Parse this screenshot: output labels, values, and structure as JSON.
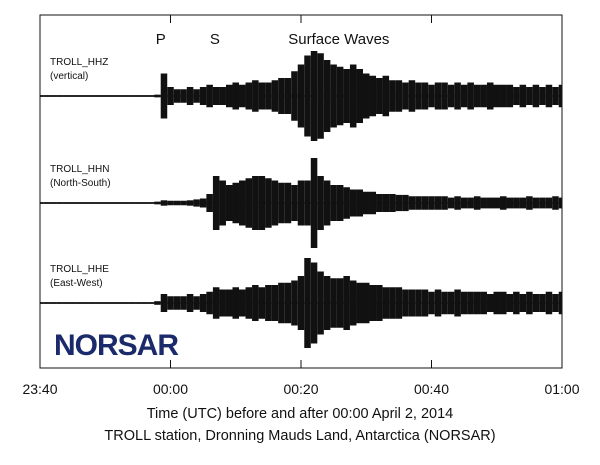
{
  "chart_data": {
    "type": "seismogram",
    "xlim": [
      -20,
      60
    ],
    "xticks": [
      {
        "value": -20,
        "label": "23:40"
      },
      {
        "value": 0,
        "label": "00:00"
      },
      {
        "value": 20,
        "label": "00:20"
      },
      {
        "value": 40,
        "label": "00:40"
      },
      {
        "value": 60,
        "label": "01:00"
      }
    ],
    "x": [
      -20,
      -19,
      -18,
      -17,
      -16,
      -15,
      -14,
      -13,
      -12,
      -11,
      -10,
      -9,
      -8,
      -7,
      -6,
      -5,
      -4,
      -3,
      -2,
      -1,
      0,
      1,
      2,
      3,
      4,
      5,
      6,
      7,
      8,
      9,
      10,
      11,
      12,
      13,
      14,
      15,
      16,
      17,
      18,
      19,
      20,
      21,
      22,
      23,
      24,
      25,
      26,
      27,
      28,
      29,
      30,
      31,
      32,
      33,
      34,
      35,
      36,
      37,
      38,
      39,
      40,
      41,
      42,
      43,
      44,
      45,
      46,
      47,
      48,
      49,
      50,
      51,
      52,
      53,
      54,
      55,
      56,
      57,
      58,
      59,
      60
    ],
    "series": [
      {
        "name": "TROLL_HHZ",
        "component": "(vertical)",
        "color": "#111111",
        "values": [
          0.02,
          0.02,
          0.02,
          0.02,
          0.02,
          0.02,
          0.02,
          0.02,
          0.02,
          0.02,
          0.02,
          0.02,
          0.02,
          0.02,
          0.02,
          0.02,
          0.02,
          0.02,
          0.03,
          0.5,
          0.2,
          0.15,
          0.15,
          0.2,
          0.15,
          0.2,
          0.25,
          0.2,
          0.2,
          0.25,
          0.3,
          0.25,
          0.3,
          0.35,
          0.3,
          0.3,
          0.35,
          0.4,
          0.4,
          0.55,
          0.7,
          0.9,
          1.0,
          0.95,
          0.8,
          0.7,
          0.65,
          0.6,
          0.7,
          0.6,
          0.5,
          0.45,
          0.4,
          0.45,
          0.35,
          0.35,
          0.3,
          0.35,
          0.3,
          0.3,
          0.25,
          0.3,
          0.3,
          0.25,
          0.3,
          0.25,
          0.3,
          0.25,
          0.25,
          0.3,
          0.25,
          0.25,
          0.25,
          0.2,
          0.25,
          0.2,
          0.25,
          0.2,
          0.25,
          0.2,
          0.25
        ]
      },
      {
        "name": "TROLL_HHN",
        "component": "(North-South)",
        "color": "#111111",
        "values": [
          0.02,
          0.02,
          0.02,
          0.02,
          0.02,
          0.02,
          0.02,
          0.02,
          0.02,
          0.02,
          0.02,
          0.02,
          0.02,
          0.02,
          0.02,
          0.02,
          0.02,
          0.02,
          0.03,
          0.06,
          0.05,
          0.05,
          0.05,
          0.06,
          0.08,
          0.1,
          0.2,
          0.6,
          0.5,
          0.4,
          0.45,
          0.5,
          0.55,
          0.6,
          0.6,
          0.55,
          0.5,
          0.45,
          0.45,
          0.4,
          0.5,
          0.5,
          1.0,
          0.6,
          0.5,
          0.4,
          0.4,
          0.35,
          0.3,
          0.3,
          0.25,
          0.25,
          0.2,
          0.2,
          0.2,
          0.18,
          0.18,
          0.15,
          0.15,
          0.15,
          0.15,
          0.15,
          0.15,
          0.12,
          0.15,
          0.12,
          0.12,
          0.15,
          0.12,
          0.12,
          0.12,
          0.15,
          0.12,
          0.12,
          0.12,
          0.15,
          0.12,
          0.12,
          0.12,
          0.15,
          0.12
        ]
      },
      {
        "name": "TROLL_HHE",
        "component": "(East-West)",
        "color": "#111111",
        "values": [
          0.02,
          0.02,
          0.02,
          0.02,
          0.02,
          0.02,
          0.02,
          0.02,
          0.02,
          0.02,
          0.02,
          0.02,
          0.02,
          0.02,
          0.02,
          0.02,
          0.02,
          0.02,
          0.04,
          0.2,
          0.15,
          0.15,
          0.15,
          0.2,
          0.15,
          0.2,
          0.25,
          0.35,
          0.3,
          0.3,
          0.35,
          0.3,
          0.35,
          0.4,
          0.35,
          0.4,
          0.4,
          0.45,
          0.45,
          0.5,
          0.6,
          1.0,
          0.9,
          0.7,
          0.6,
          0.55,
          0.55,
          0.6,
          0.5,
          0.45,
          0.45,
          0.4,
          0.4,
          0.35,
          0.35,
          0.35,
          0.3,
          0.3,
          0.3,
          0.3,
          0.25,
          0.3,
          0.25,
          0.25,
          0.3,
          0.25,
          0.25,
          0.25,
          0.25,
          0.2,
          0.25,
          0.25,
          0.2,
          0.25,
          0.2,
          0.25,
          0.2,
          0.2,
          0.25,
          0.2,
          0.25
        ]
      }
    ],
    "annotations": [
      {
        "text": "P",
        "x": -1.5
      },
      {
        "text": "S",
        "x": 6.8
      },
      {
        "text": "Surface Waves",
        "x": 25.8
      }
    ],
    "logo": "NORSAR",
    "xlabel": "Time (UTC) before and after 00:00 April 2, 2014",
    "caption": "TROLL station, Dronning Mauds Land, Antarctica (NORSAR)"
  }
}
